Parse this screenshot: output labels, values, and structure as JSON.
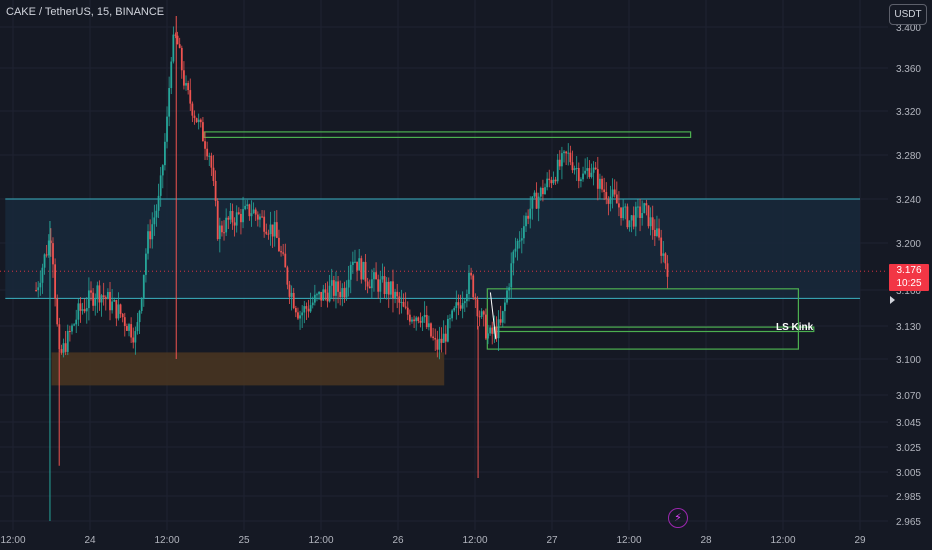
{
  "header": {
    "symbol_title": "CAKE / TetherUS, 15, BINANCE"
  },
  "currency_button": {
    "label": "USDT"
  },
  "price_tag": {
    "price": "3.176",
    "countdown": "10:25"
  },
  "annotation": {
    "label": "LS Kink"
  },
  "icons": {
    "bolt": "lightning-icon",
    "marker": "triangle-right-icon"
  },
  "colors": {
    "background": "#151924",
    "up": "#26a69a",
    "down": "#ef5350",
    "zone_line": "#3bb3c3",
    "zone_fill": "#17283a",
    "green_box": "#4caf50",
    "orange_zone": "#4a3621",
    "axis_text": "#b2b5be",
    "last_price": "#f23645"
  },
  "chart_data": {
    "type": "candlestick",
    "title": "CAKE / TetherUS, 15, BINANCE",
    "y_ticks": [
      "3.400",
      "3.360",
      "3.320",
      "3.280",
      "3.240",
      "3.200",
      "3.160",
      "3.130",
      "3.100",
      "3.070",
      "3.045",
      "3.025",
      "3.005",
      "2.985",
      "2.965"
    ],
    "x_ticks": [
      {
        "label": "12:00",
        "t": 0
      },
      {
        "label": "24",
        "t": 0.5
      },
      {
        "label": "12:00",
        "t": 1
      },
      {
        "label": "25",
        "t": 1.5
      },
      {
        "label": "12:00",
        "t": 2
      },
      {
        "label": "26",
        "t": 2.5
      },
      {
        "label": "12:00",
        "t": 3
      },
      {
        "label": "27",
        "t": 3.5
      },
      {
        "label": "12:00",
        "t": 4
      },
      {
        "label": "28",
        "t": 4.5
      },
      {
        "label": "12:00",
        "t": 5
      },
      {
        "label": "29",
        "t": 5.5
      }
    ],
    "last_price": 3.176,
    "zones": [
      {
        "name": "resistance-band",
        "y_top": 3.24,
        "y_bottom": 3.153,
        "t_start": -0.05,
        "t_end": 5.5
      },
      {
        "name": "demand-zone-orange",
        "y_top": 3.106,
        "y_bottom": 3.078,
        "t_start": 0.25,
        "t_end": 2.8
      },
      {
        "name": "top-green-box",
        "y_top": 3.301,
        "y_bottom": 3.296,
        "t_start": 1.24,
        "t_end": 4.4
      },
      {
        "name": "ls-kink-box-outer",
        "y_top": 3.161,
        "y_bottom": 3.109,
        "t_start": 3.08,
        "t_end": 5.1
      },
      {
        "name": "ls-kink-box-inner",
        "y_top": 3.129,
        "y_bottom": 3.125,
        "t_start": 3.13,
        "t_end": 5.2
      }
    ],
    "anchors": [
      [
        0.15,
        3.16
      ],
      [
        0.25,
        3.21
      ],
      [
        0.3,
        3.1
      ],
      [
        0.42,
        3.14
      ],
      [
        0.55,
        3.16
      ],
      [
        0.7,
        3.14
      ],
      [
        0.8,
        3.12
      ],
      [
        0.87,
        3.2
      ],
      [
        0.95,
        3.24
      ],
      [
        1.0,
        3.31
      ],
      [
        1.03,
        3.38
      ],
      [
        1.06,
        3.39
      ],
      [
        1.12,
        3.34
      ],
      [
        1.2,
        3.31
      ],
      [
        1.28,
        3.28
      ],
      [
        1.33,
        3.21
      ],
      [
        1.4,
        3.22
      ],
      [
        1.55,
        3.23
      ],
      [
        1.7,
        3.21
      ],
      [
        1.8,
        3.16
      ],
      [
        1.86,
        3.14
      ],
      [
        1.95,
        3.15
      ],
      [
        2.05,
        3.16
      ],
      [
        2.15,
        3.16
      ],
      [
        2.2,
        3.19
      ],
      [
        2.3,
        3.17
      ],
      [
        2.45,
        3.16
      ],
      [
        2.55,
        3.14
      ],
      [
        2.65,
        3.14
      ],
      [
        2.75,
        3.11
      ],
      [
        2.8,
        3.12
      ],
      [
        2.9,
        3.15
      ],
      [
        2.97,
        3.17
      ],
      [
        3.03,
        3.14
      ],
      [
        3.09,
        3.12
      ],
      [
        3.17,
        3.13
      ],
      [
        3.25,
        3.19
      ],
      [
        3.35,
        3.23
      ],
      [
        3.45,
        3.25
      ],
      [
        3.55,
        3.27
      ],
      [
        3.6,
        3.28
      ],
      [
        3.7,
        3.26
      ],
      [
        3.75,
        3.27
      ],
      [
        3.82,
        3.25
      ],
      [
        3.9,
        3.24
      ],
      [
        4.0,
        3.22
      ],
      [
        4.1,
        3.23
      ],
      [
        4.17,
        3.21
      ],
      [
        4.25,
        3.18
      ]
    ],
    "candle_count": 300,
    "t_range": [
      -0.05,
      5.5
    ],
    "y_range": [
      2.96,
      3.41
    ]
  }
}
